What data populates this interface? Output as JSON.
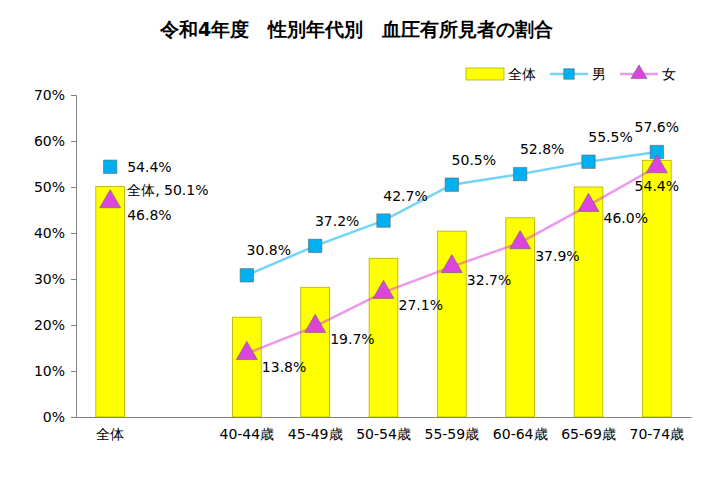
{
  "chart_data": {
    "type": "bar",
    "title": "令和4年度　性別年代別　血圧有所見者の割合",
    "categories": [
      "全体",
      null,
      "40-44歳",
      "45-49歳",
      "50-54歳",
      "55-59歳",
      "60-64歳",
      "65-69歳",
      "70-74歳"
    ],
    "series": [
      {
        "name": "全体",
        "type": "bar",
        "color": "#ffff00",
        "values": [
          50.1,
          null,
          21.7,
          28.2,
          34.5,
          40.4,
          43.3,
          50.0,
          55.8
        ],
        "value_labels": [
          "全体, 50.1%",
          null,
          null,
          null,
          null,
          null,
          null,
          null,
          null
        ]
      },
      {
        "name": "男",
        "type": "line",
        "color": "#00b0f0",
        "marker": "square",
        "values": [
          54.4,
          null,
          30.8,
          37.2,
          42.7,
          50.5,
          52.8,
          55.5,
          57.6
        ],
        "value_labels": [
          "54.4%",
          null,
          "30.8%",
          "37.2%",
          "42.7%",
          "50.5%",
          "52.8%",
          "55.5%",
          "57.6%"
        ]
      },
      {
        "name": "女",
        "type": "line",
        "color": "#dd44dd",
        "marker": "triangle",
        "values": [
          46.8,
          null,
          13.8,
          19.7,
          27.1,
          32.7,
          37.9,
          46.0,
          54.4
        ],
        "value_labels": [
          "46.8%",
          null,
          "13.8%",
          "19.7%",
          "27.1%",
          "32.7%",
          "37.9%",
          "46.0%",
          "54.4%"
        ]
      }
    ],
    "ylim": [
      0,
      70
    ],
    "yticks": [
      {
        "value": 0,
        "label": "0%"
      },
      {
        "value": 10,
        "label": "10%"
      },
      {
        "value": 20,
        "label": "20%"
      },
      {
        "value": 30,
        "label": "30%"
      },
      {
        "value": 40,
        "label": "40%"
      },
      {
        "value": 50,
        "label": "50%"
      },
      {
        "value": 60,
        "label": "60%"
      },
      {
        "value": 70,
        "label": "70%"
      }
    ],
    "grid": false,
    "legend": "top-right",
    "data_labels": true
  }
}
